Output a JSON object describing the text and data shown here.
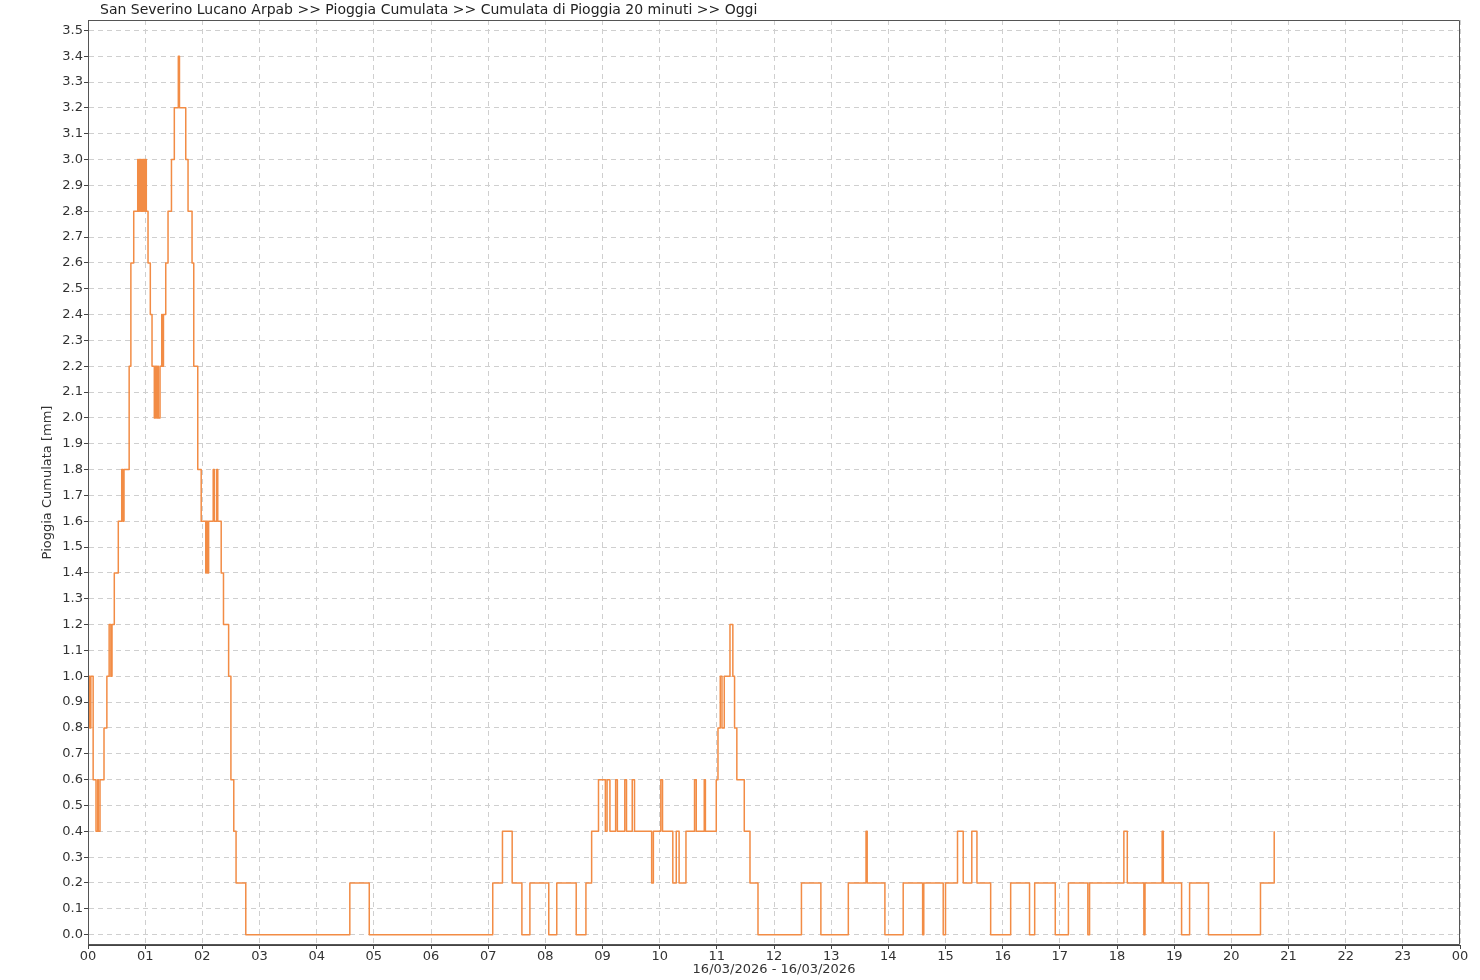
{
  "chart_data": {
    "type": "step",
    "title": "San Severino Lucano Arpab >> Pioggia Cumulata >> Cumulata di Pioggia 20 minuti >> Oggi",
    "xlabel": "16/03/2026 - 16/03/2026",
    "ylabel": "Pioggia Cumulata [mm]",
    "color": "#f28c45",
    "marker": "none",
    "grid": true,
    "x": [
      0,
      0.03,
      0.05,
      0.09,
      0.14,
      0.17,
      0.18,
      0.21,
      0.28,
      0.33,
      0.37,
      0.4,
      0.42,
      0.46,
      0.53,
      0.59,
      0.61,
      0.63,
      0.72,
      0.75,
      0.8,
      0.87,
      0.88,
      0.9,
      0.92,
      0.94,
      0.95,
      0.97,
      0.99,
      1.01,
      1.02,
      1.05,
      1.09,
      1.12,
      1.16,
      1.18,
      1.2,
      1.22,
      1.23,
      1.26,
      1.29,
      1.3,
      1.32,
      1.36,
      1.4,
      1.46,
      1.51,
      1.58,
      1.6,
      1.71,
      1.75,
      1.82,
      1.85,
      1.92,
      1.98,
      2.06,
      2.07,
      2.09,
      2.11,
      2.19,
      2.21,
      2.25,
      2.27,
      2.33,
      2.37,
      2.46,
      2.5,
      2.55,
      2.59,
      2.76,
      4.58,
      4.92,
      7.08,
      7.25,
      7.42,
      7.59,
      7.73,
      8.06,
      8.2,
      8.54,
      8.71,
      8.81,
      8.93,
      9.05,
      9.08,
      9.13,
      9.23,
      9.26,
      9.39,
      9.42,
      9.52,
      9.56,
      9.86,
      9.89,
      10.02,
      10.05,
      10.23,
      10.29,
      10.34,
      10.46,
      10.61,
      10.64,
      10.78,
      10.8,
      10.99,
      11.02,
      11.06,
      11.09,
      11.13,
      11.23,
      11.28,
      11.31,
      11.35,
      11.48,
      11.58,
      11.72,
      12.48,
      12.82,
      13.3,
      13.61,
      13.63,
      13.94,
      14.26,
      14.6,
      14.62,
      14.96,
      15.0,
      15.21,
      15.31,
      15.46,
      15.55,
      15.79,
      16.14,
      16.47,
      16.56,
      16.92,
      17.15,
      17.49,
      17.52,
      18.12,
      18.18,
      18.47,
      18.49,
      18.79,
      18.81,
      19.13,
      19.27,
      19.6,
      20.51,
      20.75
    ],
    "values": [
      1.0,
      0.8,
      1.0,
      0.6,
      0.4,
      0.6,
      0.4,
      0.6,
      0.8,
      1.0,
      1.2,
      1.0,
      1.2,
      1.4,
      1.6,
      1.8,
      1.6,
      1.8,
      2.2,
      2.6,
      2.8,
      3.0,
      2.8,
      3.0,
      2.8,
      3.0,
      2.8,
      3.0,
      2.8,
      3.0,
      2.8,
      2.6,
      2.4,
      2.2,
      2.0,
      2.2,
      2.0,
      2.2,
      2.0,
      2.2,
      2.4,
      2.2,
      2.4,
      2.6,
      2.8,
      3.0,
      3.2,
      3.4,
      3.2,
      3.0,
      2.8,
      2.6,
      2.2,
      1.8,
      1.6,
      1.4,
      1.6,
      1.4,
      1.6,
      1.8,
      1.6,
      1.8,
      1.6,
      1.4,
      1.2,
      1.0,
      0.6,
      0.4,
      0.2,
      0,
      0.2,
      0,
      0.2,
      0.4,
      0.2,
      0,
      0.2,
      0,
      0.2,
      0,
      0.2,
      0.4,
      0.6,
      0.4,
      0.6,
      0.4,
      0.6,
      0.4,
      0.6,
      0.4,
      0.6,
      0.4,
      0.2,
      0.4,
      0.6,
      0.4,
      0.2,
      0.4,
      0.2,
      0.4,
      0.6,
      0.4,
      0.6,
      0.4,
      0.6,
      0.8,
      1.0,
      0.8,
      1.0,
      1.2,
      1.0,
      0.8,
      0.6,
      0.4,
      0.2,
      0,
      0.2,
      0,
      0.2,
      0.4,
      0.2,
      0,
      0.2,
      0,
      0.2,
      0,
      0.2,
      0.4,
      0.2,
      0.4,
      0.2,
      0,
      0.2,
      0,
      0.2,
      0,
      0.2,
      0,
      0.2,
      0.4,
      0.2,
      0,
      0.2,
      0.4,
      0.2,
      0,
      0.2,
      0,
      0.2,
      0.4
    ],
    "xlim": [
      0,
      24
    ],
    "xticks": [
      {
        "value": 0,
        "label": "00"
      },
      {
        "value": 1,
        "label": "01"
      },
      {
        "value": 2,
        "label": "02"
      },
      {
        "value": 3,
        "label": "03"
      },
      {
        "value": 4,
        "label": "04"
      },
      {
        "value": 5,
        "label": "05"
      },
      {
        "value": 6,
        "label": "06"
      },
      {
        "value": 7,
        "label": "07"
      },
      {
        "value": 8,
        "label": "08"
      },
      {
        "value": 9,
        "label": "09"
      },
      {
        "value": 10,
        "label": "10"
      },
      {
        "value": 11,
        "label": "11"
      },
      {
        "value": 12,
        "label": "12"
      },
      {
        "value": 13,
        "label": "13"
      },
      {
        "value": 14,
        "label": "14"
      },
      {
        "value": 15,
        "label": "15"
      },
      {
        "value": 16,
        "label": "16"
      },
      {
        "value": 17,
        "label": "17"
      },
      {
        "value": 18,
        "label": "18"
      },
      {
        "value": 19,
        "label": "19"
      },
      {
        "value": 20,
        "label": "20"
      },
      {
        "value": 21,
        "label": "21"
      },
      {
        "value": 22,
        "label": "22"
      },
      {
        "value": 23,
        "label": "23"
      },
      {
        "value": 24,
        "label": "00"
      }
    ],
    "ylim": [
      -0.04,
      3.54
    ],
    "yticks": [
      {
        "value": 0,
        "label": "0.0"
      },
      0.1,
      0.2,
      0.3,
      0.4,
      0.5,
      0.6,
      0.7,
      0.8,
      0.9,
      {
        "value": 1,
        "label": "1.0"
      },
      1.1,
      1.2,
      1.3,
      1.4,
      1.5,
      1.6,
      1.7,
      1.8,
      1.9,
      {
        "value": 2,
        "label": "2.0"
      },
      2.1,
      2.2,
      2.3,
      2.4,
      2.5,
      2.6,
      2.7,
      2.8,
      2.9,
      {
        "value": 3,
        "label": "3.0"
      },
      3.1,
      3.2,
      3.3,
      3.4,
      3.5
    ]
  }
}
